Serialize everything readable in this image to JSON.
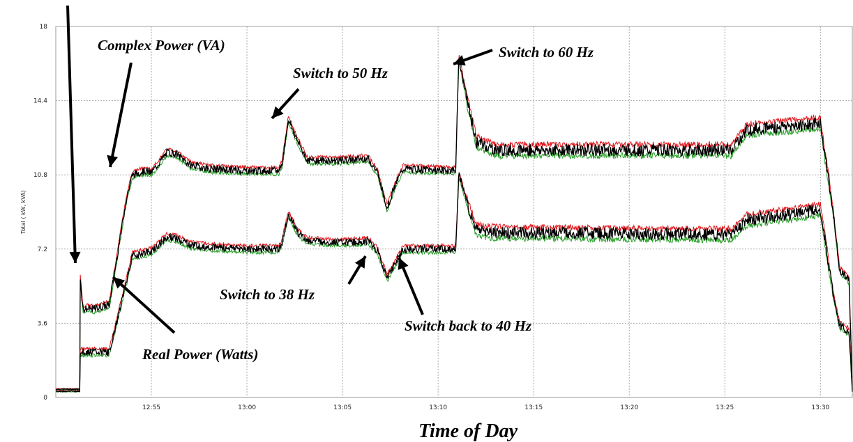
{
  "chart_data": {
    "type": "line",
    "xlabel": "Time of Day",
    "ylabel": "Total ( kW, kVA)",
    "ylim": [
      0,
      18
    ],
    "xlim_minutes": [
      "12:50:00",
      "13:31:40"
    ],
    "yticks": [
      "0",
      "3.6",
      "7.2",
      "10.8",
      "14.4",
      "18"
    ],
    "xticks": [
      "12:55",
      "13:00",
      "13:05",
      "13:10",
      "13:15",
      "13:20",
      "13:25",
      "13:30"
    ],
    "grid": true,
    "colors": {
      "main": "#000000",
      "high": "#e0191e",
      "low": "#2ca02c"
    },
    "series": [
      {
        "name": "Complex Power (VA)",
        "points": [
          [
            "12:50:00",
            0.4
          ],
          [
            "12:51:15",
            0.4
          ],
          [
            "12:51:16",
            6.0
          ],
          [
            "12:51:25",
            4.3
          ],
          [
            "12:52:00",
            4.3
          ],
          [
            "12:52:48",
            4.5
          ],
          [
            "12:53:40",
            9.5
          ],
          [
            "12:54:00",
            10.8
          ],
          [
            "12:54:40",
            11.0
          ],
          [
            "12:55:00",
            10.9
          ],
          [
            "12:55:50",
            11.9
          ],
          [
            "12:56:20",
            11.8
          ],
          [
            "12:57:00",
            11.3
          ],
          [
            "12:58:00",
            11.1
          ],
          [
            "13:00:00",
            11.0
          ],
          [
            "13:01:40",
            11.0
          ],
          [
            "13:01:50",
            11.3
          ],
          [
            "13:02:10",
            13.5
          ],
          [
            "13:02:40",
            12.4
          ],
          [
            "13:03:10",
            11.5
          ],
          [
            "13:05:00",
            11.5
          ],
          [
            "13:06:20",
            11.6
          ],
          [
            "13:06:50",
            10.9
          ],
          [
            "13:07:20",
            9.2
          ],
          [
            "13:07:45",
            10.3
          ],
          [
            "13:08:10",
            11.1
          ],
          [
            "13:10:55",
            11.0
          ],
          [
            "13:11:05",
            16.5
          ],
          [
            "13:11:30",
            14.5
          ],
          [
            "13:12:00",
            12.4
          ],
          [
            "13:13:00",
            12.0
          ],
          [
            "13:25:20",
            12.0
          ],
          [
            "13:26:10",
            13.0
          ],
          [
            "13:30:00",
            13.3
          ],
          [
            "13:30:40",
            9.0
          ],
          [
            "13:31:00",
            6.2
          ],
          [
            "13:31:30",
            5.7
          ],
          [
            "13:31:40",
            0.4
          ]
        ]
      },
      {
        "name": "Real Power (Watts)",
        "points": [
          [
            "12:50:00",
            0.3
          ],
          [
            "12:51:15",
            0.3
          ],
          [
            "12:51:16",
            2.2
          ],
          [
            "12:52:48",
            2.2
          ],
          [
            "12:53:40",
            5.5
          ],
          [
            "12:54:00",
            6.9
          ],
          [
            "12:54:40",
            7.0
          ],
          [
            "12:55:00",
            7.1
          ],
          [
            "12:55:50",
            7.8
          ],
          [
            "12:56:20",
            7.7
          ],
          [
            "12:57:00",
            7.4
          ],
          [
            "12:58:00",
            7.3
          ],
          [
            "13:00:00",
            7.2
          ],
          [
            "13:01:40",
            7.2
          ],
          [
            "13:01:50",
            7.5
          ],
          [
            "13:02:10",
            8.9
          ],
          [
            "13:02:40",
            8.0
          ],
          [
            "13:03:10",
            7.6
          ],
          [
            "13:05:00",
            7.5
          ],
          [
            "13:06:20",
            7.6
          ],
          [
            "13:06:50",
            7.1
          ],
          [
            "13:07:20",
            5.8
          ],
          [
            "13:07:45",
            6.5
          ],
          [
            "13:08:10",
            7.2
          ],
          [
            "13:10:55",
            7.2
          ],
          [
            "13:11:05",
            10.8
          ],
          [
            "13:11:30",
            9.5
          ],
          [
            "13:12:00",
            8.1
          ],
          [
            "13:13:00",
            8.0
          ],
          [
            "13:25:20",
            7.9
          ],
          [
            "13:26:10",
            8.6
          ],
          [
            "13:30:00",
            9.1
          ],
          [
            "13:30:40",
            5.0
          ],
          [
            "13:31:00",
            3.5
          ],
          [
            "13:31:30",
            3.2
          ],
          [
            "13:31:40",
            0.3
          ]
        ]
      }
    ],
    "annotations": [
      {
        "text": "Complex Power (VA)"
      },
      {
        "text": "Real Power (Watts)"
      },
      {
        "text": "Switch to 50 Hz"
      },
      {
        "text": "Switch to 60 Hz"
      },
      {
        "text": "Switch to 38 Hz"
      },
      {
        "text": "Switch back to 40 Hz"
      }
    ]
  }
}
